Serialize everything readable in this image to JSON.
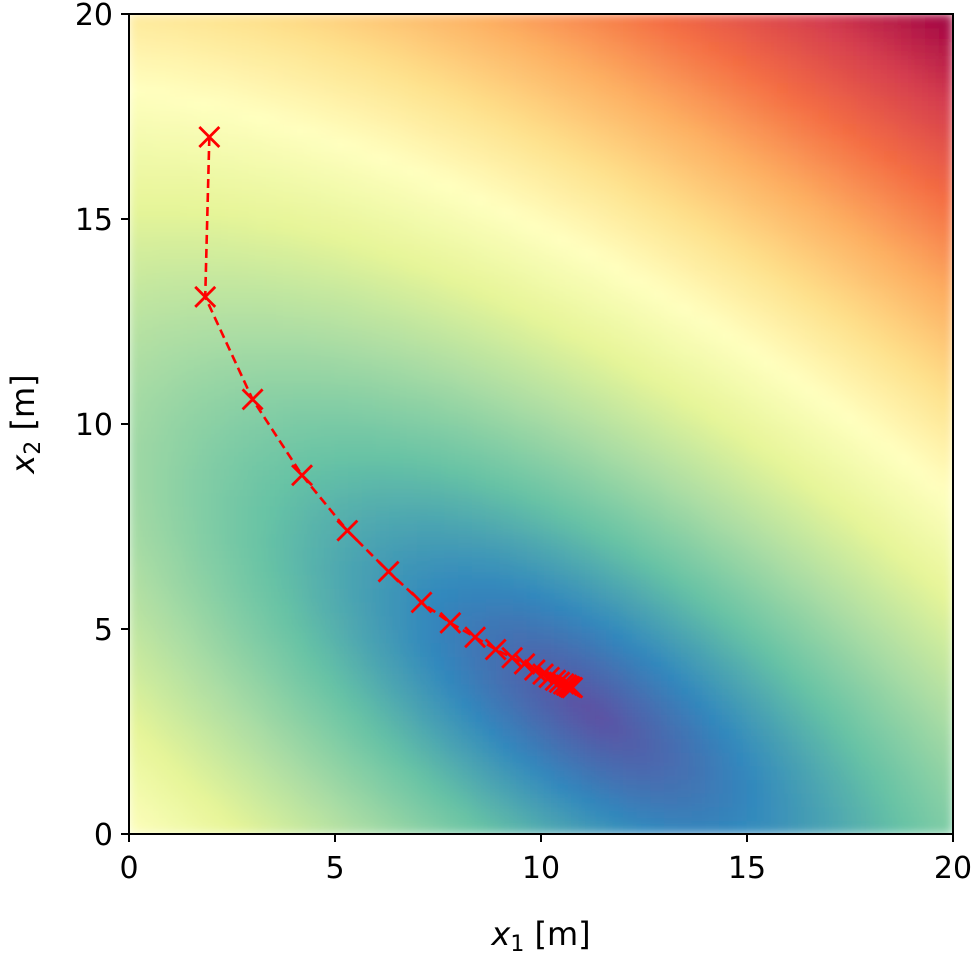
{
  "chart_data": {
    "type": "contour",
    "xlabel": {
      "var": "x",
      "sub": "1",
      "unit": "[m]"
    },
    "ylabel": {
      "var": "x",
      "sub": "2",
      "unit": "[m]"
    },
    "xlim": [
      0,
      20
    ],
    "ylim": [
      0,
      20
    ],
    "xticks": [
      0,
      5,
      10,
      15,
      20
    ],
    "yticks": [
      0,
      5,
      10,
      15,
      20
    ],
    "colormap": [
      "#5e4fa2",
      "#3288bd",
      "#66c2a5",
      "#abdda4",
      "#e6f598",
      "#ffffbf",
      "#fee08b",
      "#fdae61",
      "#f46d43",
      "#d53e4f",
      "#9e0142"
    ],
    "path_color": "#ff0000",
    "path_style": "dashed",
    "marker": "x",
    "minimum": [
      11.2,
      3.0
    ],
    "path": {
      "x": [
        1.95,
        1.85,
        3.0,
        4.2,
        5.3,
        6.3,
        7.1,
        7.8,
        8.4,
        8.9,
        9.3,
        9.6,
        9.85,
        10.05,
        10.2,
        10.35,
        10.45,
        10.55,
        10.62,
        10.68,
        10.72,
        10.76
      ],
      "y": [
        17.0,
        13.1,
        10.6,
        8.75,
        7.4,
        6.4,
        5.65,
        5.15,
        4.8,
        4.5,
        4.3,
        4.15,
        4.0,
        3.9,
        3.82,
        3.75,
        3.7,
        3.66,
        3.63,
        3.6,
        3.58,
        3.57
      ]
    }
  }
}
